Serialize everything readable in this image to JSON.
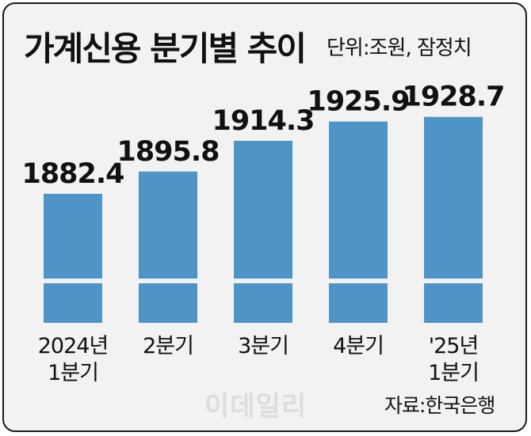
{
  "title": "가계신용 분기별 추이",
  "unit": "단위:조원, 잠정치",
  "source": "자료:한국은행",
  "watermark": "이데일리",
  "colors": {
    "bar": "#4f94c7",
    "background": "#f2f2f2",
    "text": "#111111"
  },
  "chart_data": {
    "type": "bar",
    "categories": [
      [
        "2024년",
        "1분기"
      ],
      [
        "2분기"
      ],
      [
        "3분기"
      ],
      [
        "4분기"
      ],
      [
        "'25년",
        "1분기"
      ]
    ],
    "values": [
      1882.4,
      1895.8,
      1914.3,
      1925.9,
      1928.7
    ],
    "data_labels": [
      "1882.4",
      "1895.8",
      "1914.3",
      "1925.9",
      "1928.7"
    ],
    "axis_break": true,
    "grid": false,
    "legend": "none"
  }
}
